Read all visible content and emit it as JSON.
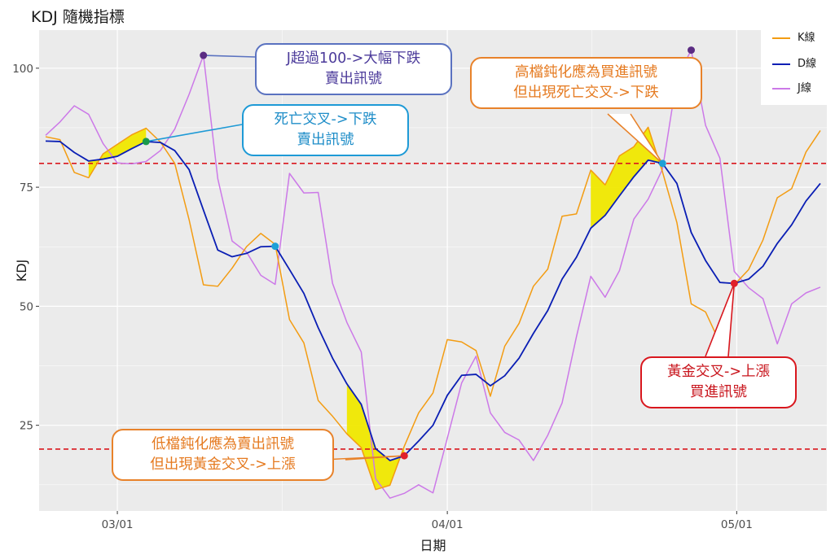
{
  "title": "KDJ 隨機指標",
  "chart_data": {
    "type": "line",
    "title": "KDJ 隨機指標",
    "xlabel": "日期",
    "ylabel": "KDJ",
    "x_ticks": [
      "03/01",
      "04/01",
      "05/01"
    ],
    "y_ticks": [
      25,
      50,
      75,
      100
    ],
    "ylim": [
      7,
      108
    ],
    "grid": true,
    "legend_position": "top-right",
    "thresholds": [
      80,
      20
    ],
    "x": [
      "02/22",
      "02/23",
      "02/24",
      "02/25",
      "02/26",
      "03/01",
      "03/02",
      "03/03",
      "03/04",
      "03/05",
      "03/08",
      "03/09",
      "03/10",
      "03/11",
      "03/12",
      "03/15",
      "03/16",
      "03/17",
      "03/18",
      "03/19",
      "03/22",
      "03/23",
      "03/24",
      "03/25",
      "03/26",
      "03/29",
      "03/30",
      "03/31",
      "04/01",
      "04/02",
      "04/06",
      "04/07",
      "04/08",
      "04/09",
      "04/12",
      "04/13",
      "04/14",
      "04/15",
      "04/16",
      "04/19",
      "04/20",
      "04/21",
      "04/22",
      "04/23",
      "04/26",
      "04/27",
      "04/28",
      "04/29",
      "04/30",
      "05/03",
      "05/04",
      "05/05",
      "05/06",
      "05/07",
      "05/10"
    ],
    "series": [
      {
        "name": "K線",
        "color": "#F39C12",
        "values": [
          85.6,
          85.0,
          78.1,
          77.0,
          82.0,
          84.0,
          86.0,
          87.4,
          84.5,
          80.0,
          68.2,
          54.5,
          54.2,
          58.0,
          62.5,
          65.3,
          63.0,
          47.2,
          42.3,
          30.2,
          26.9,
          23.2,
          20.3,
          11.5,
          12.4,
          20.6,
          27.6,
          31.8,
          43.0,
          42.5,
          40.7,
          31.1,
          41.6,
          46.4,
          54.2,
          57.8,
          68.9,
          69.4,
          78.6,
          75.5,
          81.6,
          83.5,
          87.6,
          78.2,
          67.6,
          50.5,
          48.8,
          42.3,
          54.5,
          57.7,
          63.9,
          72.8,
          74.7,
          82.4,
          86.9
        ]
      },
      {
        "name": "D線",
        "color": "#0A1EB4",
        "values": [
          84.7,
          84.6,
          82.3,
          80.5,
          80.9,
          81.5,
          83.1,
          84.6,
          84.4,
          82.7,
          78.7,
          70.2,
          61.8,
          60.4,
          61.1,
          62.5,
          62.6,
          57.7,
          52.7,
          45.5,
          39.1,
          33.7,
          29.4,
          20.1,
          17.6,
          18.6,
          21.7,
          25.0,
          31.3,
          35.5,
          35.7,
          33.3,
          35.4,
          39.1,
          44.3,
          49.1,
          55.7,
          60.3,
          66.4,
          69.1,
          73.2,
          77.2,
          80.7,
          80.0,
          75.8,
          65.5,
          59.6,
          55.0,
          54.8,
          55.7,
          58.4,
          63.2,
          67.1,
          72.1,
          75.8
        ]
      },
      {
        "name": "J線",
        "color": "#CC79E8",
        "values": [
          85.9,
          88.7,
          92.1,
          90.3,
          84.2,
          80.1,
          79.9,
          80.4,
          82.7,
          87.2,
          94.5,
          102.7,
          76.8,
          63.7,
          61.4,
          56.5,
          54.6,
          77.9,
          73.8,
          73.9,
          54.8,
          46.6,
          40.4,
          13.8,
          9.7,
          10.7,
          12.5,
          10.8,
          22.3,
          33.9,
          39.5,
          27.6,
          23.5,
          21.9,
          17.6,
          22.9,
          29.7,
          43.6,
          56.3,
          51.9,
          57.5,
          68.3,
          72.5,
          78.8,
          97.9,
          103.8,
          88.0,
          81.1,
          57.3,
          53.9,
          51.6,
          42.1,
          50.5,
          52.8,
          54.0
        ]
      }
    ],
    "annotations": [
      {
        "text": "J超過100->大幅下跌\n賣出訊號",
        "color": "#6A5ACD"
      },
      {
        "text": "死亡交叉->下跌\n賣出訊號",
        "color": "#1E9AD6"
      },
      {
        "text": "高檔鈍化應為買進訊號\n但出現死亡交叉->下跌",
        "color": "#E8822A"
      },
      {
        "text": "低檔鈍化應為賣出訊號\n但出現黃金交叉->上漲",
        "color": "#E8822A"
      },
      {
        "text": "黃金交叉->上漲\n買進訊號",
        "color": "#D9171E"
      }
    ]
  },
  "callouts": {
    "j_over_100": {
      "line1": "J超過100->大幅下跌",
      "line2": "賣出訊號"
    },
    "death_cross_1": {
      "line1": "死亡交叉->下跌",
      "line2": "賣出訊號"
    },
    "high_blunt": {
      "line1": "高檔鈍化應為買進訊號",
      "line2": "但出現死亡交叉->下跌"
    },
    "low_blunt": {
      "line1": "低檔鈍化應為賣出訊號",
      "line2": "但出現黃金交叉->上漲"
    },
    "golden_cross_2": {
      "line1": "黃金交叉->上漲",
      "line2": "買進訊號"
    }
  },
  "colors": {
    "panel": "#EBEBEB",
    "grid": "#FFFFFF",
    "threshold": "#D9171E",
    "highlight": "#F0E800",
    "point_purple": "#5B2C83",
    "point_green": "#1A9A4A",
    "point_cyan": "#1EA0D6",
    "point_red": "#E0202A"
  }
}
